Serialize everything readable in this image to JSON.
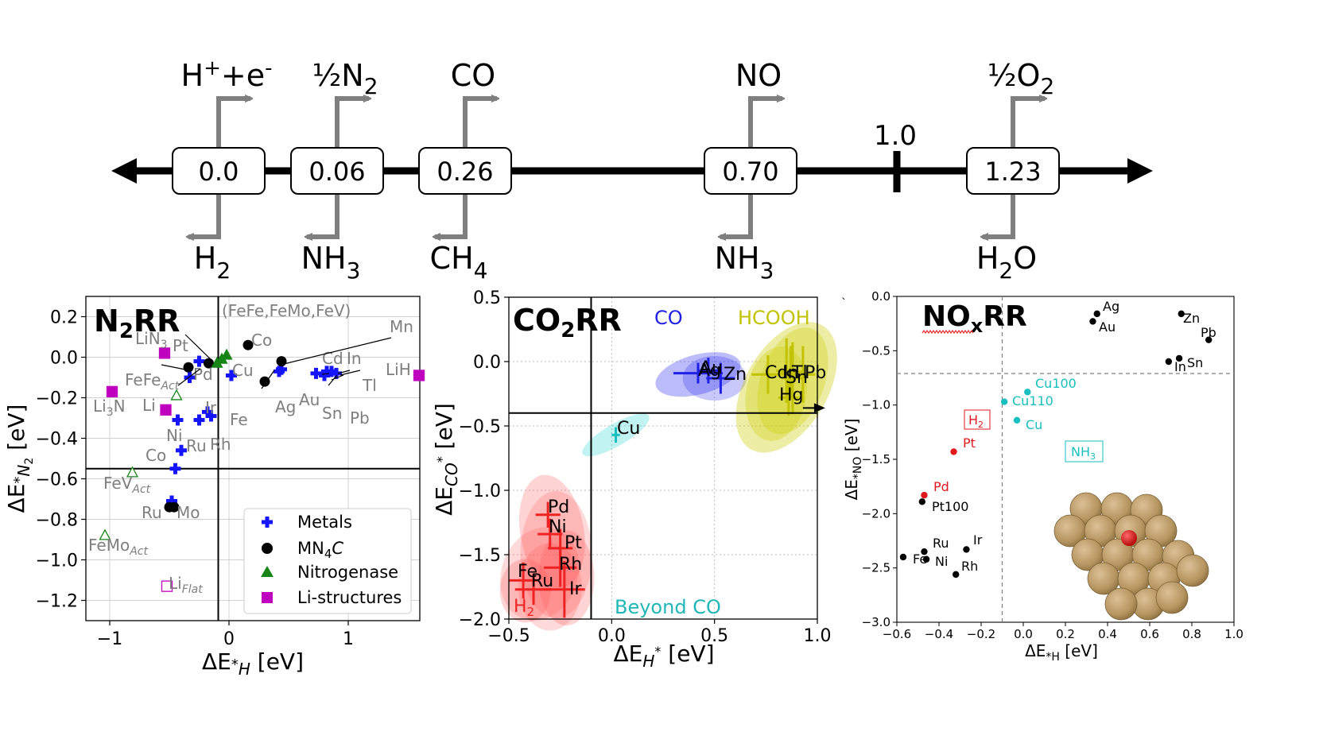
{
  "scale": {
    "line_label": "1.0",
    "items": [
      {
        "value": "0.0",
        "above": [
          "H",
          "+",
          "+e",
          "-"
        ],
        "below": [
          "H",
          "2"
        ]
      },
      {
        "value": "0.06",
        "above": [
          "½N",
          "2"
        ],
        "below": [
          "NH",
          "3"
        ]
      },
      {
        "value": "0.26",
        "above": [
          "CO"
        ],
        "below": [
          "CH",
          "4"
        ]
      },
      {
        "value": "0.70",
        "above": [
          "NO"
        ],
        "below": [
          "NH",
          "3"
        ]
      },
      {
        "value": "1.23",
        "above": [
          "½O",
          "2"
        ],
        "below": [
          "H",
          "2",
          "O"
        ]
      }
    ]
  },
  "colors": {
    "metals": "#1414ff",
    "mn4c": "#000000",
    "nitrogenase": "#168516",
    "li": "#bf00bf",
    "gray_label": "#7f7f7f",
    "co": "#1f1fe6",
    "hcooh": "#c2c200",
    "h2": "#ee2222",
    "beyond": "#1fb7b7",
    "cyan": "#17bfbf",
    "red_label": "#e0191e"
  },
  "chart_data": [
    {
      "type": "scatter",
      "title": "N2RR",
      "xlabel": "ΔE*H [eV]",
      "ylabel": "ΔE*N2 [eV]",
      "xlim": [
        -1.2,
        1.6
      ],
      "ylim": [
        -1.3,
        0.3
      ],
      "grid": true,
      "xticks": [
        -1,
        0,
        1
      ],
      "yticks": [
        0.2,
        0.0,
        -0.2,
        -0.4,
        -0.6,
        -0.8,
        -1.0,
        -1.2
      ],
      "ytick_labels": [
        "0.2",
        "0.0",
        "−0.2",
        "−0.4",
        "−0.6",
        "−0.8",
        "−1.0",
        "−1.2"
      ],
      "xtick_labels": [
        "−1",
        "0",
        "1"
      ],
      "reference_lines": {
        "x": -0.09,
        "y": -0.55
      },
      "legend": {
        "position": "bottom-right",
        "entries": [
          "Metals",
          "MN4C",
          "Nitrogenase",
          "Li-structures"
        ]
      },
      "series": [
        {
          "name": "Metals",
          "marker": "plus",
          "points": [
            {
              "label": "Mo",
              "x": -0.48,
              "y": -0.71
            },
            {
              "label": "Co",
              "x": -0.45,
              "y": -0.55
            },
            {
              "label": "Ru",
              "x": -0.4,
              "y": -0.46
            },
            {
              "label": "Ni",
              "x": -0.43,
              "y": -0.31
            },
            {
              "label": "Rh",
              "x": -0.25,
              "y": -0.31
            },
            {
              "label": "Ir",
              "x": -0.18,
              "y": -0.27
            },
            {
              "label": "",
              "x": -0.15,
              "y": -0.29
            },
            {
              "label": "Pd",
              "x": -0.33,
              "y": -0.1
            },
            {
              "label": "Pt",
              "x": -0.25,
              "y": -0.02
            },
            {
              "label": "Cu",
              "x": 0.02,
              "y": -0.09
            },
            {
              "label": "Ag",
              "x": 0.42,
              "y": -0.07
            },
            {
              "label": "Au",
              "x": 0.44,
              "y": -0.06
            },
            {
              "label": "Cd",
              "x": 0.73,
              "y": -0.08
            },
            {
              "label": "In",
              "x": 0.82,
              "y": -0.07
            },
            {
              "label": "Sn",
              "x": 0.8,
              "y": -0.09
            },
            {
              "label": "Tl",
              "x": 0.86,
              "y": -0.07
            },
            {
              "label": "Pb",
              "x": 0.9,
              "y": -0.08
            }
          ]
        },
        {
          "name": "MN4C",
          "marker": "circle",
          "points": [
            {
              "label": "Mn",
              "x": 0.44,
              "y": -0.02
            },
            {
              "label": "Co",
              "x": 0.16,
              "y": 0.06
            },
            {
              "label": "Fe",
              "x": 0.3,
              "y": -0.12
            },
            {
              "label": "",
              "x": -0.34,
              "y": -0.05
            },
            {
              "label": "",
              "x": -0.17,
              "y": -0.03
            },
            {
              "label": "",
              "x": -0.5,
              "y": -0.74
            },
            {
              "label": "",
              "x": -0.46,
              "y": -0.74
            }
          ]
        },
        {
          "name": "Nitrogenase",
          "marker": "triangle",
          "points": [
            {
              "label": "(FeFe,FeMo,FeV)",
              "x": -0.1,
              "y": -0.03,
              "filled": true
            },
            {
              "label": "",
              "x": -0.06,
              "y": -0.01,
              "filled": true
            },
            {
              "label": "",
              "x": -0.02,
              "y": 0.01,
              "filled": true
            },
            {
              "label": "FeFeAct",
              "x": -0.44,
              "y": -0.19,
              "filled": false
            },
            {
              "label": "FeVAct",
              "x": -0.81,
              "y": -0.57,
              "filled": false
            },
            {
              "label": "FeMoAct",
              "x": -1.04,
              "y": -0.88,
              "filled": false
            }
          ]
        },
        {
          "name": "Li-structures",
          "marker": "square",
          "points": [
            {
              "label": "LiN3",
              "x": -0.54,
              "y": 0.02,
              "filled": true
            },
            {
              "label": "Li3N",
              "x": -0.98,
              "y": -0.17,
              "filled": true
            },
            {
              "label": "Li",
              "x": -0.53,
              "y": -0.26,
              "filled": true
            },
            {
              "label": "LiH",
              "x": 1.6,
              "y": -0.09,
              "filled": true
            },
            {
              "label": "LiFlat",
              "x": -0.52,
              "y": -1.13,
              "filled": false
            }
          ]
        }
      ]
    },
    {
      "type": "scatter",
      "title": "CO2RR",
      "xlabel": "ΔEH* [eV]",
      "ylabel": "ΔECO* [eV]",
      "xlim": [
        -0.5,
        1.0
      ],
      "ylim": [
        -2.0,
        0.5
      ],
      "grid": true,
      "xticks": [
        -0.5,
        0.0,
        0.5,
        1.0
      ],
      "xtick_labels": [
        "−0.5",
        "0.0",
        "0.5",
        "1.0"
      ],
      "yticks": [
        0.5,
        0.0,
        -0.5,
        -1.0,
        -1.5,
        -2.0
      ],
      "ytick_labels": [
        "0.5",
        "0.0",
        "−0.5",
        "−1.0",
        "−1.5",
        "−2.0"
      ],
      "reference_lines": {
        "x": -0.1,
        "y": -0.4
      },
      "region_labels": [
        "CO",
        "HCOOH",
        "Beyond CO",
        "H2"
      ],
      "series": [
        {
          "name": "CO",
          "points": [
            {
              "label": "Ag",
              "x": 0.42,
              "y": -0.09
            },
            {
              "label": "Au",
              "x": 0.47,
              "y": -0.07
            },
            {
              "label": "Zn",
              "x": 0.53,
              "y": -0.13
            }
          ]
        },
        {
          "name": "HCOOH",
          "points": [
            {
              "label": "Cd",
              "x": 0.76,
              "y": -0.1
            },
            {
              "label": "In",
              "x": 0.85,
              "y": -0.07
            },
            {
              "label": "Tl",
              "x": 0.87,
              "y": -0.08
            },
            {
              "label": "Sn",
              "x": 0.88,
              "y": -0.13
            },
            {
              "label": "Pb",
              "x": 0.93,
              "y": -0.1
            },
            {
              "label": "Hg",
              "x": 0.86,
              "y": -0.28
            }
          ]
        },
        {
          "name": "Beyond CO",
          "points": [
            {
              "label": "Cu",
              "x": 0.02,
              "y": -0.57
            }
          ]
        },
        {
          "name": "H2",
          "points": [
            {
              "label": "Pd",
              "x": -0.31,
              "y": -1.19
            },
            {
              "label": "Ni",
              "x": -0.3,
              "y": -1.34
            },
            {
              "label": "Pt",
              "x": -0.25,
              "y": -1.45
            },
            {
              "label": "Rh",
              "x": -0.25,
              "y": -1.6
            },
            {
              "label": "Fe",
              "x": -0.43,
              "y": -1.7
            },
            {
              "label": "Ru",
              "x": -0.38,
              "y": -1.77
            },
            {
              "label": "Ir",
              "x": -0.23,
              "y": -1.77
            }
          ]
        }
      ]
    },
    {
      "type": "scatter",
      "title": "NOxRR",
      "xlabel": "ΔE*H [eV]",
      "ylabel": "ΔE*NO [eV]",
      "xlim": [
        -0.6,
        1.0
      ],
      "ylim": [
        -3.0,
        0.0
      ],
      "grid": false,
      "xticks": [
        -0.6,
        -0.4,
        -0.2,
        0.0,
        0.2,
        0.4,
        0.6,
        0.8,
        1.0
      ],
      "xtick_labels": [
        "−0.6",
        "−0.4",
        "−0.2",
        "0.0",
        "0.2",
        "0.4",
        "0.6",
        "0.8",
        "1.0"
      ],
      "yticks": [
        0.0,
        -0.5,
        -1.0,
        -1.5,
        -2.0,
        -2.5,
        -3.0
      ],
      "ytick_labels": [
        "0.0",
        "−0.5",
        "−1.0",
        "−1.5",
        "−2.0",
        "−2.5",
        "−3.0"
      ],
      "reference_lines": {
        "x": -0.1,
        "y": -0.71
      },
      "region_labels": [
        "H2",
        "NH3"
      ],
      "series": [
        {
          "name": "black",
          "points": [
            {
              "label": "Ag",
              "x": 0.35,
              "y": -0.16
            },
            {
              "label": "Au",
              "x": 0.33,
              "y": -0.23
            },
            {
              "label": "Zn",
              "x": 0.75,
              "y": -0.16
            },
            {
              "label": "Pb",
              "x": 0.88,
              "y": -0.4
            },
            {
              "label": "In",
              "x": 0.69,
              "y": -0.6
            },
            {
              "label": "Sn",
              "x": 0.74,
              "y": -0.57
            },
            {
              "label": "Pt100",
              "x": -0.48,
              "y": -1.89
            },
            {
              "label": "Ru",
              "x": -0.47,
              "y": -2.35
            },
            {
              "label": "Ir",
              "x": -0.27,
              "y": -2.33
            },
            {
              "label": "Fe",
              "x": -0.57,
              "y": -2.4
            },
            {
              "label": "Ni",
              "x": -0.46,
              "y": -2.42
            },
            {
              "label": "Rh",
              "x": -0.32,
              "y": -2.56
            }
          ]
        },
        {
          "name": "cyan",
          "points": [
            {
              "label": "Cu100",
              "x": 0.02,
              "y": -0.88
            },
            {
              "label": "Cu110",
              "x": -0.09,
              "y": -0.97
            },
            {
              "label": "Cu",
              "x": -0.03,
              "y": -1.14
            }
          ]
        },
        {
          "name": "red",
          "points": [
            {
              "label": "Pt",
              "x": -0.33,
              "y": -1.43
            },
            {
              "label": "Pd",
              "x": -0.47,
              "y": -1.83
            }
          ]
        }
      ]
    }
  ]
}
